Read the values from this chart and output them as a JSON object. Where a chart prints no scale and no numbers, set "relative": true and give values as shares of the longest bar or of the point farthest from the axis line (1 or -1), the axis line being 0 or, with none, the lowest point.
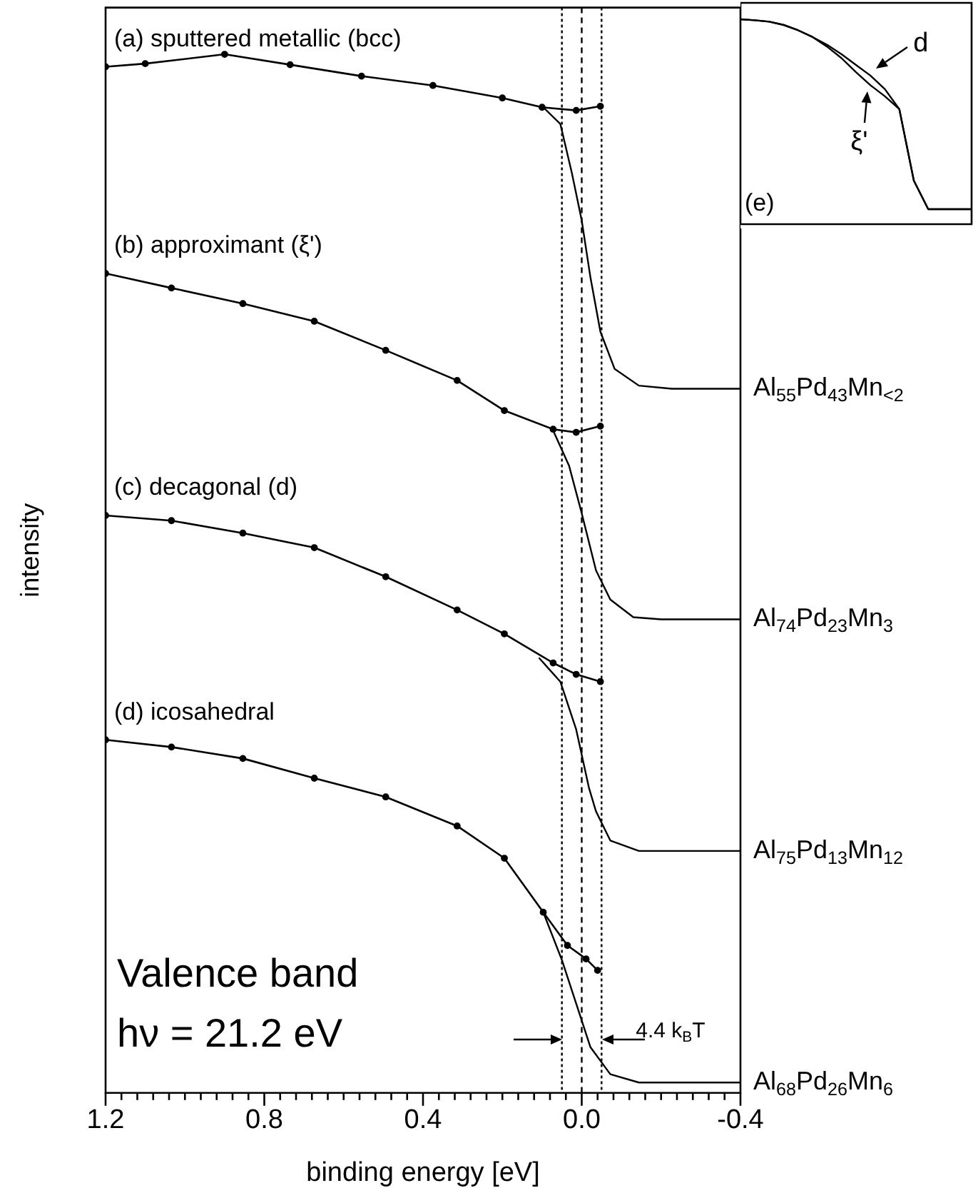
{
  "chart_data": [
    {
      "type": "line",
      "xlabel": "binding energy [eV]",
      "ylabel": "intensity",
      "relative": true,
      "xlim": [
        1.2,
        -0.4
      ],
      "xticks": [
        1.2,
        {
          "value": 1.16,
          "label": null
        },
        {
          "value": 1.12,
          "label": null
        },
        {
          "value": 1.08,
          "label": null
        },
        {
          "value": 1.04,
          "label": null
        },
        {
          "value": 1.0,
          "label": null
        },
        {
          "value": 0.96,
          "label": null
        },
        {
          "value": 0.92,
          "label": null
        },
        {
          "value": 0.88,
          "label": null
        },
        {
          "value": 0.84,
          "label": null
        },
        0.8,
        {
          "value": 0.76,
          "label": null
        },
        {
          "value": 0.72,
          "label": null
        },
        {
          "value": 0.68,
          "label": null
        },
        {
          "value": 0.64,
          "label": null
        },
        {
          "value": 0.6,
          "label": null
        },
        {
          "value": 0.56,
          "label": null
        },
        {
          "value": 0.52,
          "label": null
        },
        {
          "value": 0.48,
          "label": null
        },
        {
          "value": 0.44,
          "label": null
        },
        0.4,
        {
          "value": 0.36,
          "label": null
        },
        {
          "value": 0.32,
          "label": null
        },
        {
          "value": 0.28,
          "label": null
        },
        {
          "value": 0.24,
          "label": null
        },
        {
          "value": 0.2,
          "label": null
        },
        {
          "value": 0.16,
          "label": null
        },
        {
          "value": 0.12,
          "label": null
        },
        {
          "value": 0.08,
          "label": null
        },
        {
          "value": 0.04,
          "label": null
        },
        {
          "value": 0,
          "label": "0.0"
        },
        {
          "value": -0.04,
          "label": null
        },
        {
          "value": -0.08,
          "label": null
        },
        {
          "value": -0.12,
          "label": null
        },
        {
          "value": -0.16,
          "label": null
        },
        {
          "value": -0.2,
          "label": null
        },
        {
          "value": -0.24,
          "label": null
        },
        {
          "value": -0.28,
          "label": null
        },
        {
          "value": -0.32,
          "label": null
        },
        {
          "value": -0.36,
          "label": null
        },
        -0.4
      ],
      "series": [
        {
          "type": "line",
          "marker": "circle",
          "name": "(a) sputtered metallic (bcc)",
          "color": "#000000",
          "x": [
            1.2,
            1.1,
            0.9,
            0.735,
            0.555,
            0.375,
            0.2,
            0.1,
            0.014,
            -0.047
          ],
          "values": [
            0.988,
            0.991,
            1.0,
            0.99,
            0.979,
            0.97,
            0.958,
            0.949,
            0.946,
            0.95
          ]
        },
        {
          "type": "line",
          "marker": "none",
          "name": "Al$_{55}$Pd$_{43}$Mn$_{<2}$",
          "color": "#000000",
          "x": [
            0.097,
            0.054,
            0.025,
            0.0,
            -0.022,
            -0.047,
            -0.083,
            -0.144,
            -0.227,
            -0.4
          ],
          "values": [
            0.949,
            0.933,
            0.886,
            0.84,
            0.785,
            0.733,
            0.697,
            0.681,
            0.678,
            0.678
          ]
        },
        {
          "type": "line",
          "marker": "circle",
          "name": "(b) approximant (ξ')",
          "color": "#000000",
          "x": [
            1.2,
            1.034,
            0.854,
            0.674,
            0.494,
            0.314,
            0.195,
            0.072,
            0.014,
            -0.047
          ],
          "values": [
            0.789,
            0.775,
            0.76,
            0.743,
            0.715,
            0.686,
            0.657,
            0.639,
            0.636,
            0.642
          ]
        },
        {
          "type": "line",
          "marker": "none",
          "name": "Al$_{74}$Pd$_{23}$Mn$_{3}$",
          "color": "#000000",
          "x": [
            0.07,
            0.032,
            0.0,
            -0.036,
            -0.072,
            -0.13,
            -0.2,
            -0.4
          ],
          "values": [
            0.636,
            0.604,
            0.558,
            0.503,
            0.475,
            0.458,
            0.456,
            0.456
          ]
        },
        {
          "type": "line",
          "marker": "circle",
          "name": "(c) decagonal (d)",
          "color": "#000000",
          "x": [
            1.2,
            1.034,
            0.854,
            0.674,
            0.494,
            0.314,
            0.195,
            0.072,
            0.014,
            -0.047
          ],
          "values": [
            0.556,
            0.551,
            0.539,
            0.525,
            0.497,
            0.465,
            0.442,
            0.414,
            0.403,
            0.396
          ]
        },
        {
          "type": "line",
          "marker": "none",
          "name": "Al$_{75}$Pd$_{13}$Mn$_{12}$",
          "color": "#000000",
          "x": [
            0.108,
            0.054,
            0.014,
            -0.018,
            -0.036,
            -0.072,
            -0.144,
            -0.4
          ],
          "values": [
            0.419,
            0.396,
            0.35,
            0.294,
            0.271,
            0.243,
            0.233,
            0.233
          ]
        },
        {
          "type": "line",
          "marker": "circle",
          "name": "(d) icosahedral",
          "color": "#000000",
          "x": [
            1.2,
            1.034,
            0.854,
            0.674,
            0.494,
            0.314,
            0.195,
            0.097,
            0.036,
            -0.011,
            -0.04
          ],
          "values": [
            0.34,
            0.333,
            0.322,
            0.303,
            0.285,
            0.257,
            0.226,
            0.174,
            0.142,
            0.129,
            0.118
          ]
        },
        {
          "type": "line",
          "marker": "none",
          "name": "Al$_{68}$Pd$_{26}$Mn$_{6}$",
          "color": "#000000",
          "x": [
            0.097,
            0.05,
            0.014,
            -0.022,
            -0.072,
            -0.144,
            -0.4
          ],
          "values": [
            0.174,
            0.128,
            0.086,
            0.044,
            0.018,
            0.01,
            0.01
          ]
        }
      ],
      "ref_lines": [
        {
          "axis": "x",
          "value": 0.05,
          "color": "#000000",
          "line_style": "dotted"
        },
        {
          "axis": "x",
          "value": 0,
          "color": "#000000",
          "line_style": "dashed"
        },
        {
          "axis": "x",
          "value": -0.05,
          "color": "#000000",
          "line_style": "dotted"
        }
      ],
      "annotations": [
        "Valence band",
        "hν = 21.2 eV",
        {
          "text": "4.4 k$_{B}$T",
          "x": -0.05,
          "y": 0.051
        }
      ]
    },
    {
      "type": "line",
      "relative": true,
      "tick_labels": false,
      "categories": [
        null,
        null,
        null,
        null,
        null,
        null,
        null,
        null,
        null,
        null,
        null,
        null,
        null,
        null,
        null,
        null,
        null
      ],
      "series": [
        {
          "name": "d",
          "color": "#000000",
          "values": [
            1.0,
            0.995,
            0.988,
            0.972,
            0.946,
            0.913,
            0.875,
            0.829,
            0.777,
            0.725,
            0.659,
            0.561,
            0.213,
            0.073,
            0.073,
            0.073,
            0.073
          ]
        },
        {
          "name": "ξ'",
          "color": "#000000",
          "values": [
            1.0,
            0.995,
            0.988,
            0.972,
            0.946,
            0.913,
            0.866,
            0.81,
            0.742,
            0.678,
            0.624,
            0.561,
            0.213,
            0.073,
            0.073,
            0.073,
            0.073
          ]
        }
      ],
      "annotations": [
        "(e)"
      ]
    }
  ]
}
